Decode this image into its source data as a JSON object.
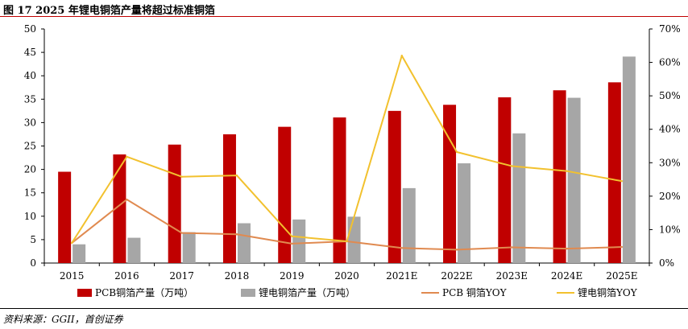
{
  "figure": {
    "title": "图 17 2025 年锂电铜箔产量将超过标准铜箔",
    "source": "资料来源：GGII，首创证券"
  },
  "colors": {
    "pcb_bar": "#c00000",
    "li_bar": "#a6a6a6",
    "pcb_line": "#e08a50",
    "li_line": "#f2c12e",
    "title_rule": "#c00000"
  },
  "chart_data": {
    "type": "bar",
    "categories": [
      "2015",
      "2016",
      "2017",
      "2018",
      "2019",
      "2020",
      "2021E",
      "2022E",
      "2023E",
      "2024E",
      "2025E"
    ],
    "left_axis": {
      "min": 0,
      "max": 50,
      "step": 5,
      "ticks": [
        "0",
        "5",
        "10",
        "15",
        "20",
        "25",
        "30",
        "35",
        "40",
        "45",
        "50"
      ]
    },
    "right_axis": {
      "min": 0,
      "max": 0.7,
      "step": 0.1,
      "ticks": [
        "0%",
        "10%",
        "20%",
        "30%",
        "40%",
        "50%",
        "60%",
        "70%"
      ]
    },
    "series": [
      {
        "name": "PCB铜箔产量（万吨）",
        "type": "bar",
        "axis": "left",
        "values": [
          19.5,
          23.2,
          25.3,
          27.5,
          29.1,
          31.1,
          32.5,
          33.8,
          35.4,
          36.9,
          38.6
        ]
      },
      {
        "name": "锂电铜箔产量（万吨）",
        "type": "bar",
        "axis": "left",
        "values": [
          4.0,
          5.4,
          6.6,
          8.5,
          9.3,
          9.9,
          16.0,
          21.3,
          27.7,
          35.3,
          44.1
        ]
      },
      {
        "name": "PCB 铜箔YOY",
        "type": "line",
        "axis": "right",
        "values": [
          0.06,
          0.19,
          0.09,
          0.086,
          0.058,
          0.065,
          0.045,
          0.04,
          0.047,
          0.043,
          0.048
        ]
      },
      {
        "name": "锂电铜箔YOY",
        "type": "line",
        "axis": "right",
        "values": [
          0.06,
          0.318,
          0.258,
          0.262,
          0.08,
          0.065,
          0.62,
          0.332,
          0.29,
          0.275,
          0.245
        ]
      }
    ],
    "legend_position": "bottom",
    "grid": false
  }
}
